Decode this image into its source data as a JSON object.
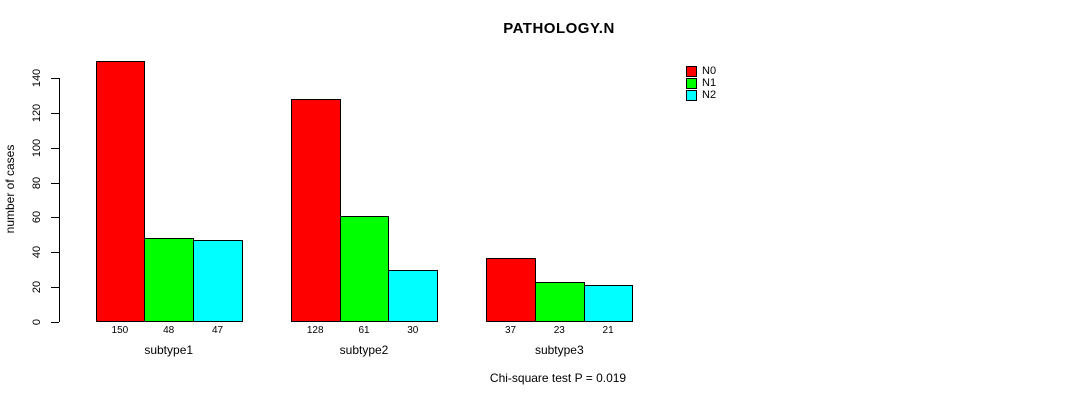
{
  "chart_data": {
    "type": "bar",
    "title": "PATHOLOGY.N",
    "xlabel": "",
    "ylabel": "number of cases",
    "categories": [
      "subtype1",
      "subtype2",
      "subtype3"
    ],
    "series": [
      {
        "name": "N0",
        "color": "#FF0000",
        "values": [
          150,
          128,
          37
        ]
      },
      {
        "name": "N1",
        "color": "#00FF00",
        "values": [
          48,
          61,
          23
        ]
      },
      {
        "name": "N2",
        "color": "#00FFFF",
        "values": [
          47,
          30,
          21
        ]
      }
    ],
    "bar_value_labels": [
      [
        "150",
        "48",
        "47"
      ],
      [
        "128",
        "61",
        "30"
      ],
      [
        "37",
        "23",
        "21"
      ]
    ],
    "yticks": [
      0,
      20,
      40,
      60,
      80,
      100,
      120,
      140
    ],
    "ylim": [
      0,
      140
    ],
    "grid": false,
    "legend_position": "top-right",
    "annotation": "Chi-square test P = 0.019"
  }
}
